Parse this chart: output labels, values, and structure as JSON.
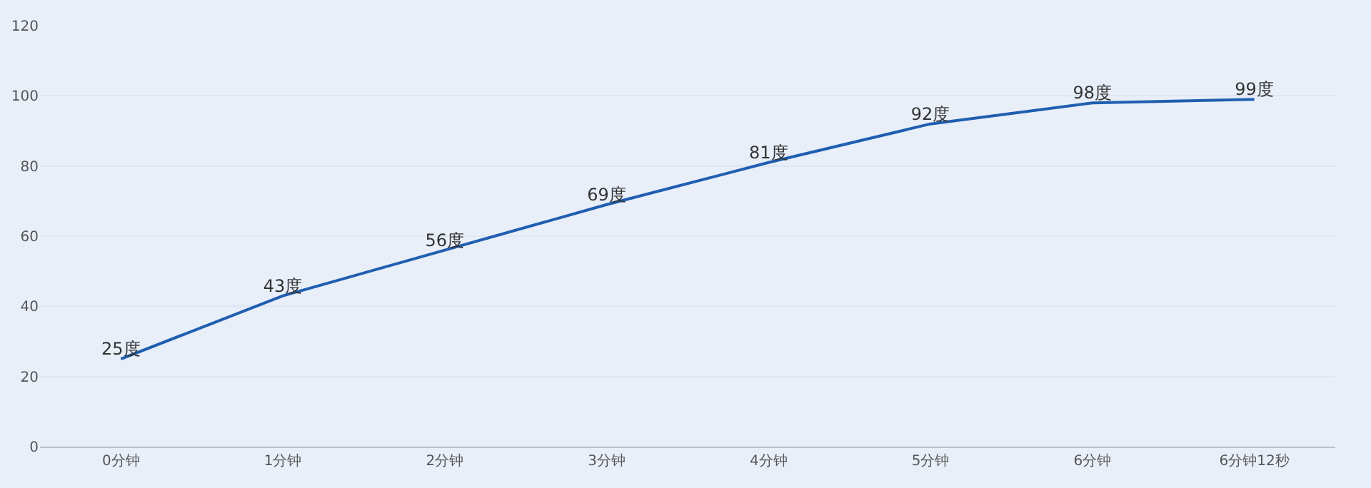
{
  "chart_data": {
    "type": "line",
    "categories": [
      "0分钟",
      "1分钟",
      "2分钟",
      "3分钟",
      "4分钟",
      "5分钟",
      "6分钟",
      "6分钟12秒"
    ],
    "series": [
      {
        "color": "#1f5eb0",
        "values": [
          25,
          43,
          56,
          69,
          81,
          92,
          98,
          99
        ],
        "value_labels": [
          "25度",
          "43度",
          "56度",
          "69度",
          "81度",
          "92度",
          "98度",
          "99度"
        ]
      }
    ],
    "ylim": [
      0,
      120
    ],
    "yticks": [
      0,
      20,
      40,
      60,
      80,
      100,
      120
    ],
    "grid": "y",
    "marker": "none",
    "line_style": "solid"
  }
}
